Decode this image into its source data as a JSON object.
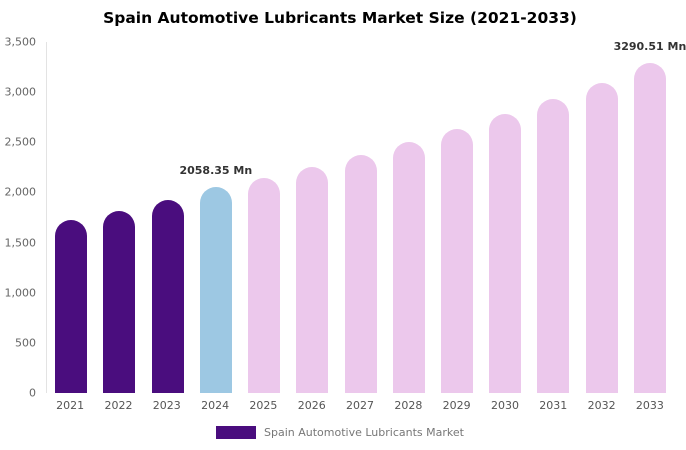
{
  "chart_data": {
    "type": "bar",
    "title": "Spain Automotive Lubricants Market Size (2021-2033)",
    "categories": [
      "2021",
      "2022",
      "2023",
      "2024",
      "2025",
      "2026",
      "2027",
      "2028",
      "2029",
      "2030",
      "2031",
      "2032",
      "2033"
    ],
    "values": [
      1730,
      1815,
      1920,
      2058.35,
      2140,
      2255,
      2370,
      2500,
      2635,
      2780,
      2930,
      3095,
      3290.51
    ],
    "unit": "Mn",
    "xlabel": "",
    "ylabel": "",
    "ylim": [
      0,
      3500
    ],
    "ytick_values": [
      0,
      500,
      1000,
      1500,
      2000,
      2500,
      3000,
      3500
    ],
    "ytick_labels": [
      "0",
      "500",
      "1,000",
      "1,500",
      "2,000",
      "2,500",
      "3,000",
      "3,500"
    ],
    "grid": false,
    "annotations": [
      {
        "index": 3,
        "text": "2058.35 Mn"
      },
      {
        "index": 12,
        "text": "3290.51 Mn"
      }
    ],
    "bar_colors": [
      "#4a0d7e",
      "#4a0d7e",
      "#4a0d7e",
      "#9dc8e3",
      "#ecc8ec",
      "#ecc8ec",
      "#ecc8ec",
      "#ecc8ec",
      "#ecc8ec",
      "#ecc8ec",
      "#ecc8ec",
      "#ecc8ec",
      "#ecc8ec"
    ],
    "legend_position": "bottom",
    "legend": [
      {
        "label": "Spain Automotive Lubricants Market",
        "color": "#4a0d7e"
      }
    ]
  }
}
